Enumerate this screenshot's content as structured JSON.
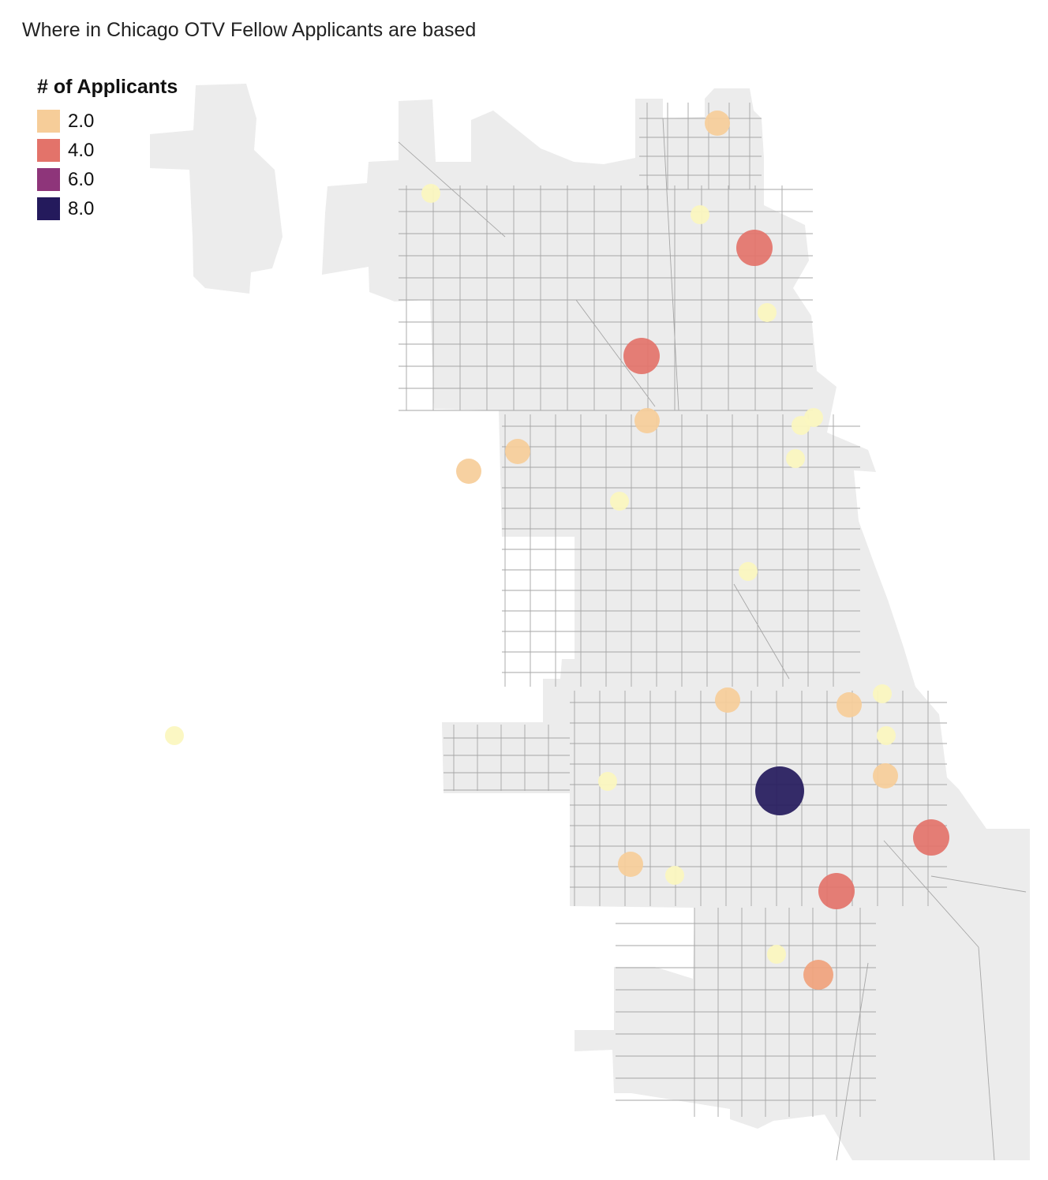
{
  "title": "Where in Chicago OTV Fellow Applicants are based",
  "legend": {
    "title": "# of Applicants",
    "items": [
      {
        "label": "2.0",
        "color": "#f6cd99"
      },
      {
        "label": "4.0",
        "color": "#e3736a"
      },
      {
        "label": "6.0",
        "color": "#8e357a"
      },
      {
        "label": "8.0",
        "color": "#241a5c"
      }
    ]
  },
  "colors": {
    "land": "#ececec",
    "boundary": "#a6a6a6",
    "one_applicant": "#fbf7c0"
  },
  "points": [
    {
      "count": 2,
      "color": "#f6cd99"
    },
    {
      "count": 1,
      "color": "#fbf7c0"
    },
    {
      "count": 1,
      "color": "#fbf7c0"
    },
    {
      "count": 4,
      "color": "#e3736a"
    },
    {
      "count": 1,
      "color": "#fbf7c0"
    },
    {
      "count": 4,
      "color": "#e3736a"
    },
    {
      "count": 2,
      "color": "#f6cd99"
    },
    {
      "count": 1,
      "color": "#fbf7c0"
    },
    {
      "count": 1,
      "color": "#fbf7c0"
    },
    {
      "count": 1,
      "color": "#fbf7c0"
    },
    {
      "count": 2,
      "color": "#f6cd99"
    },
    {
      "count": 2,
      "color": "#f6cd99"
    },
    {
      "count": 1,
      "color": "#fbf7c0"
    },
    {
      "count": 1,
      "color": "#fbf7c0"
    },
    {
      "count": 2,
      "color": "#f6cd99"
    },
    {
      "count": 2,
      "color": "#f6cd99"
    },
    {
      "count": 1,
      "color": "#fbf7c0"
    },
    {
      "count": 1,
      "color": "#fbf7c0"
    },
    {
      "count": 2,
      "color": "#f6cd99"
    },
    {
      "count": 8,
      "color": "#241a5c"
    },
    {
      "count": 1,
      "color": "#fbf7c0"
    },
    {
      "count": 4,
      "color": "#e3736a"
    },
    {
      "count": 2,
      "color": "#f6cd99"
    },
    {
      "count": 1,
      "color": "#fbf7c0"
    },
    {
      "count": 4,
      "color": "#e3736a"
    },
    {
      "count": 1,
      "color": "#fbf7c0"
    },
    {
      "count": 3,
      "color": "#f0a27c"
    },
    {
      "count": 1,
      "color": "#fbf7c0"
    }
  ]
}
